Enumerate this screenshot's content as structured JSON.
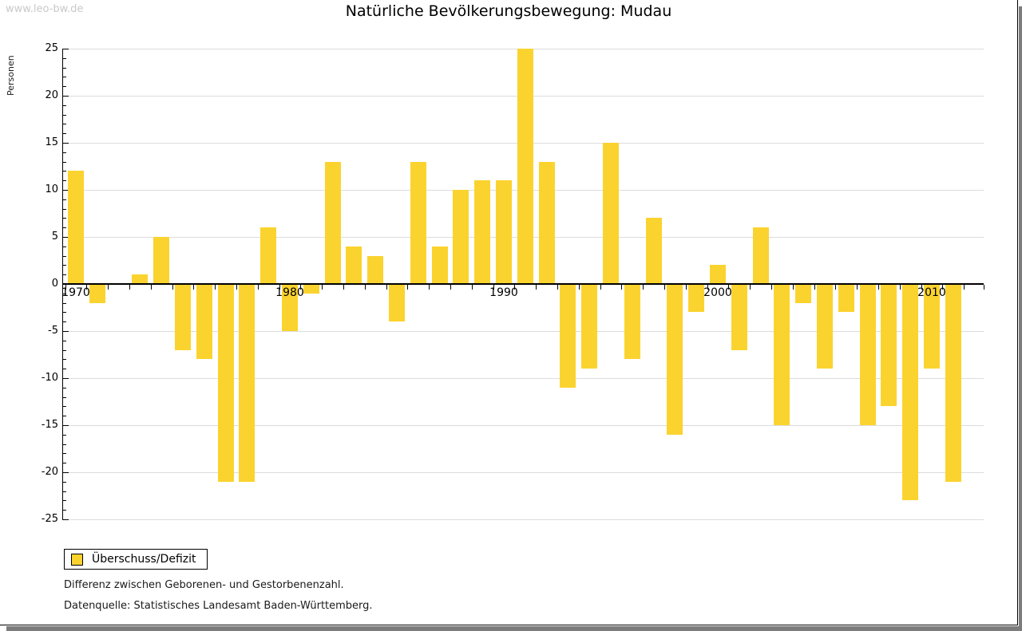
{
  "watermark": "www.leo-bw.de",
  "title": "Natürliche Bevölkerungsbewegung: Mudau",
  "y_axis": {
    "label": "Personen",
    "tick_labels": [
      "25",
      "20",
      "15",
      "10",
      "5",
      "0",
      "-5",
      "-10",
      "-15",
      "-20",
      "-25"
    ],
    "min": -25,
    "max": 25,
    "major_step": 5,
    "minor_step": 1
  },
  "x_axis": {
    "decade_labels": [
      "1970",
      "1980",
      "1990",
      "2000",
      "2010"
    ]
  },
  "legend": {
    "label": "Überschuss/Defizit"
  },
  "notes": [
    "Differenz zwischen Geborenen- und Gestorbenenzahl.",
    "Datenquelle: Statistisches Landesamt Baden-Württemberg."
  ],
  "colors": {
    "bar": "#fbd32f",
    "grid": "#dcdcdc",
    "axis": "#000000",
    "watermark": "#c9c9c9",
    "shadow": "#7c7c7c"
  },
  "chart_data": {
    "type": "bar",
    "title": "Natürliche Bevölkerungsbewegung: Mudau",
    "xlabel": "",
    "ylabel": "Personen",
    "ylim": [
      -25,
      25
    ],
    "grid": true,
    "legend": [
      "Überschuss/Defizit"
    ],
    "legend_position": "bottom-left",
    "categories": [
      1970,
      1971,
      1972,
      1973,
      1974,
      1975,
      1976,
      1977,
      1978,
      1979,
      1980,
      1981,
      1982,
      1983,
      1984,
      1985,
      1986,
      1987,
      1988,
      1989,
      1990,
      1991,
      1992,
      1993,
      1994,
      1995,
      1996,
      1997,
      1998,
      1999,
      2000,
      2001,
      2002,
      2003,
      2004,
      2005,
      2006,
      2007,
      2008,
      2009,
      2010,
      2011
    ],
    "values": [
      12,
      -2,
      0,
      1,
      5,
      -7,
      -8,
      -21,
      -21,
      6,
      -5,
      -1,
      13,
      4,
      3,
      -4,
      13,
      4,
      10,
      11,
      11,
      25,
      13,
      -11,
      -9,
      15,
      -8,
      7,
      -16,
      -3,
      2,
      -7,
      6,
      -15,
      -2,
      -9,
      -3,
      -15,
      -13,
      -23,
      -9,
      -21
    ]
  }
}
